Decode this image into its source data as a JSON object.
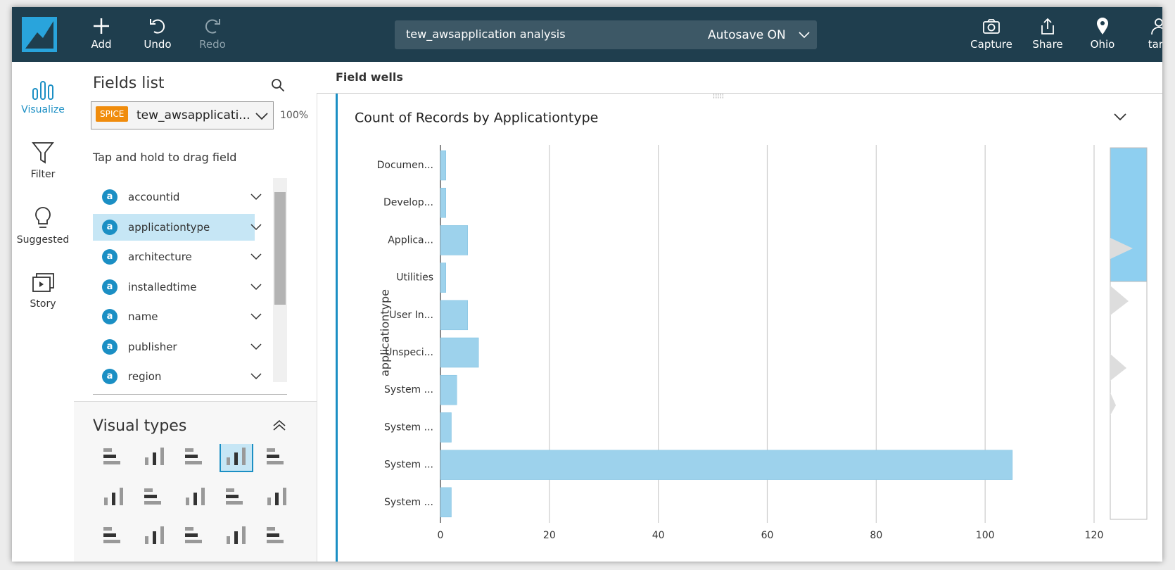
{
  "toolbar": {
    "buttons": [
      "Add",
      "Undo",
      "Redo"
    ],
    "analysis_name": "tew_awsapplication analysis",
    "autosave": "Autosave ON",
    "right_buttons": [
      "Capture",
      "Share",
      "Ohio",
      "tara"
    ]
  },
  "sidebar": [
    "Visualize",
    "Filter",
    "Suggested",
    "Story"
  ],
  "fields_panel": {
    "title": "Fields list",
    "badge": "SPICE",
    "dataset": "tew_awsapplicati...",
    "zoom": "100%",
    "hint": "Tap and hold to drag field",
    "field_icon": "a",
    "fields": [
      "accountid",
      "applicationtype",
      "architecture",
      "installedtime",
      "name",
      "publisher",
      "region"
    ]
  },
  "visual_types": {
    "title": "Visual types"
  },
  "field_wells": "Field wells",
  "chart_data": {
    "type": "bar",
    "orientation": "horizontal",
    "title": "Count of Records by Applicationtype",
    "y_label": "applicationtype",
    "categories": [
      "Documen...",
      "Develop...",
      "Applica...",
      "Utilities",
      "User In...",
      "Unspeci...",
      "System ...",
      "System ...",
      "System ...",
      "System ..."
    ],
    "values": [
      1,
      1,
      5,
      1,
      5,
      7,
      3,
      2,
      105,
      2
    ],
    "color": "#9dd2ec",
    "xlim": [
      0,
      120
    ],
    "xticks": [
      0,
      20,
      40,
      60,
      80,
      100,
      120
    ],
    "grid": true
  }
}
